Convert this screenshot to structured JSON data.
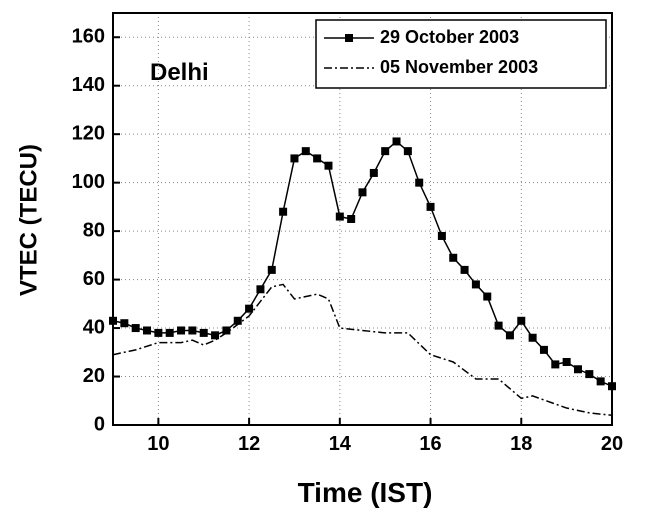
{
  "chart_data": {
    "type": "line",
    "annotation": "Delhi",
    "x_label": "Time (IST)",
    "y_label": "VTEC (TECU)",
    "xlim": [
      9,
      20
    ],
    "xticks": [
      10,
      12,
      14,
      16,
      18,
      20
    ],
    "ylim": [
      0,
      170
    ],
    "yticks": [
      0,
      20,
      40,
      60,
      80,
      100,
      120,
      140,
      160
    ],
    "grid": true,
    "legend": "upper right",
    "series": [
      {
        "name": "29 October 2003",
        "color": "#000000",
        "style": "solid-square",
        "x": [
          9.0,
          9.25,
          9.5,
          9.75,
          10.0,
          10.25,
          10.5,
          10.75,
          11.0,
          11.25,
          11.5,
          11.75,
          12.0,
          12.25,
          12.5,
          12.75,
          13.0,
          13.25,
          13.5,
          13.75,
          14.0,
          14.25,
          14.5,
          14.75,
          15.0,
          15.25,
          15.5,
          15.75,
          16.0,
          16.25,
          16.5,
          16.75,
          17.0,
          17.25,
          17.5,
          17.75,
          18.0,
          18.25,
          18.5,
          18.75,
          19.0,
          19.25,
          19.5,
          19.75,
          20.0
        ],
        "values": [
          43,
          42,
          40,
          39,
          38,
          38,
          39,
          39,
          38,
          37,
          39,
          43,
          48,
          56,
          64,
          88,
          110,
          113,
          110,
          107,
          86,
          85,
          96,
          104,
          113,
          117,
          113,
          100,
          90,
          78,
          69,
          64,
          58,
          53,
          41,
          37,
          43,
          36,
          31,
          25,
          26,
          23,
          21,
          18,
          16
        ]
      },
      {
        "name": "05 November 2003",
        "color": "#000000",
        "style": "dashdot",
        "x": [
          9.0,
          9.5,
          10.0,
          10.5,
          10.75,
          11.0,
          11.25,
          11.5,
          12.0,
          12.5,
          12.75,
          13.0,
          13.5,
          13.75,
          14.0,
          14.5,
          15.0,
          15.5,
          16.0,
          16.5,
          17.0,
          17.5,
          18.0,
          18.25,
          19.0,
          19.5,
          20.0
        ],
        "values": [
          29,
          31,
          34,
          34,
          35,
          33,
          35,
          38,
          45,
          57,
          58,
          52,
          54,
          52,
          40,
          39,
          38,
          38,
          29,
          26,
          19,
          19,
          11,
          12,
          7,
          5,
          4
        ]
      }
    ]
  }
}
